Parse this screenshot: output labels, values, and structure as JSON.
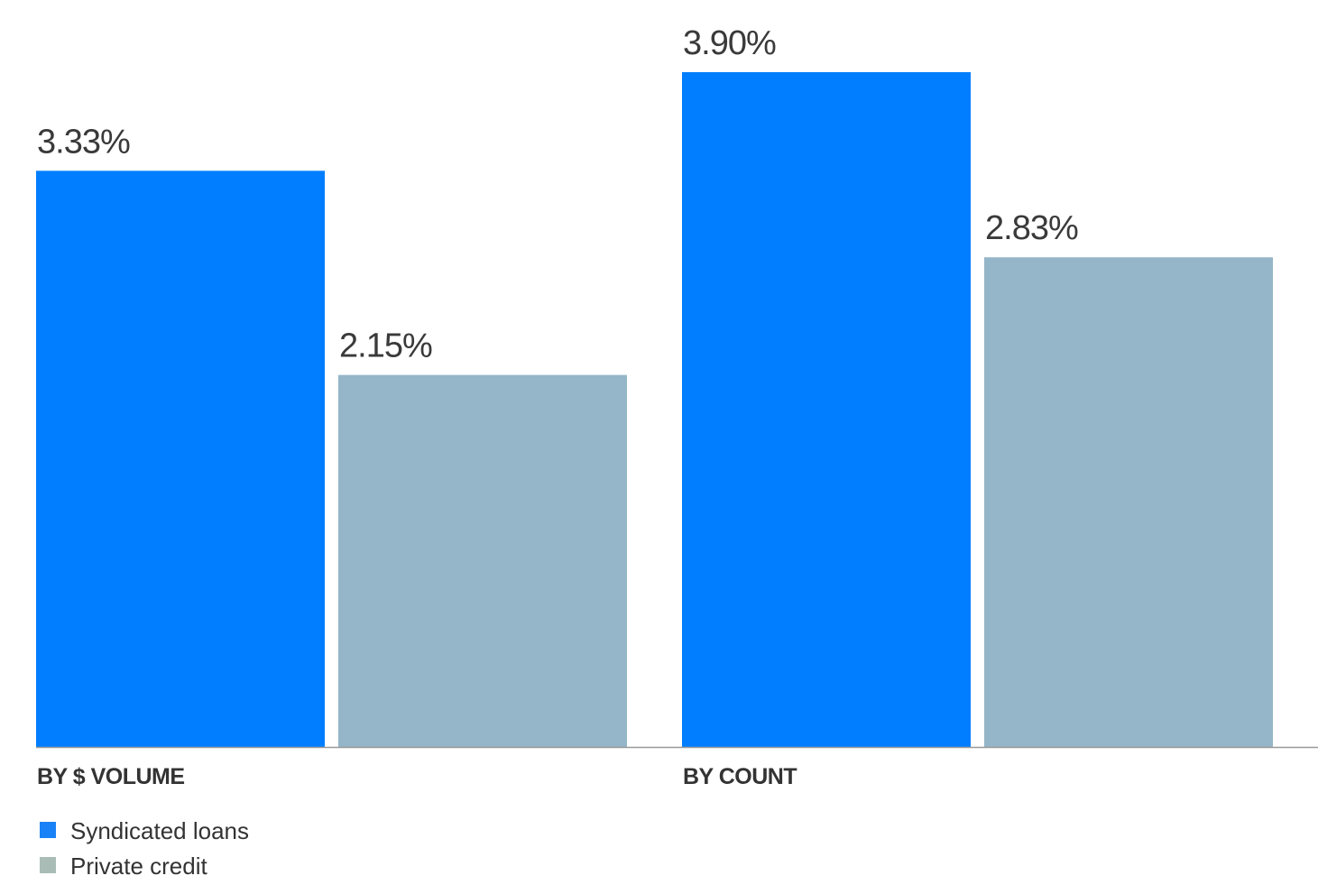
{
  "chart_data": {
    "type": "bar",
    "categories": [
      "BY $ VOLUME",
      "BY COUNT"
    ],
    "series": [
      {
        "name": "Syndicated loans",
        "values": [
          3.33,
          3.9
        ],
        "labels": [
          "3.33%",
          "3.90%"
        ],
        "color": "#007eff",
        "legend_color": "#1a82f7"
      },
      {
        "name": "Private credit",
        "values": [
          2.15,
          2.83
        ],
        "labels": [
          "2.15%",
          "2.83%"
        ],
        "color": "#95b5c8",
        "legend_color": "#a9bdb6"
      }
    ],
    "unit": "%",
    "ylim": [
      0,
      3.9
    ],
    "grid": false,
    "legend": "bottom-left",
    "baseline_color": "#999999"
  }
}
